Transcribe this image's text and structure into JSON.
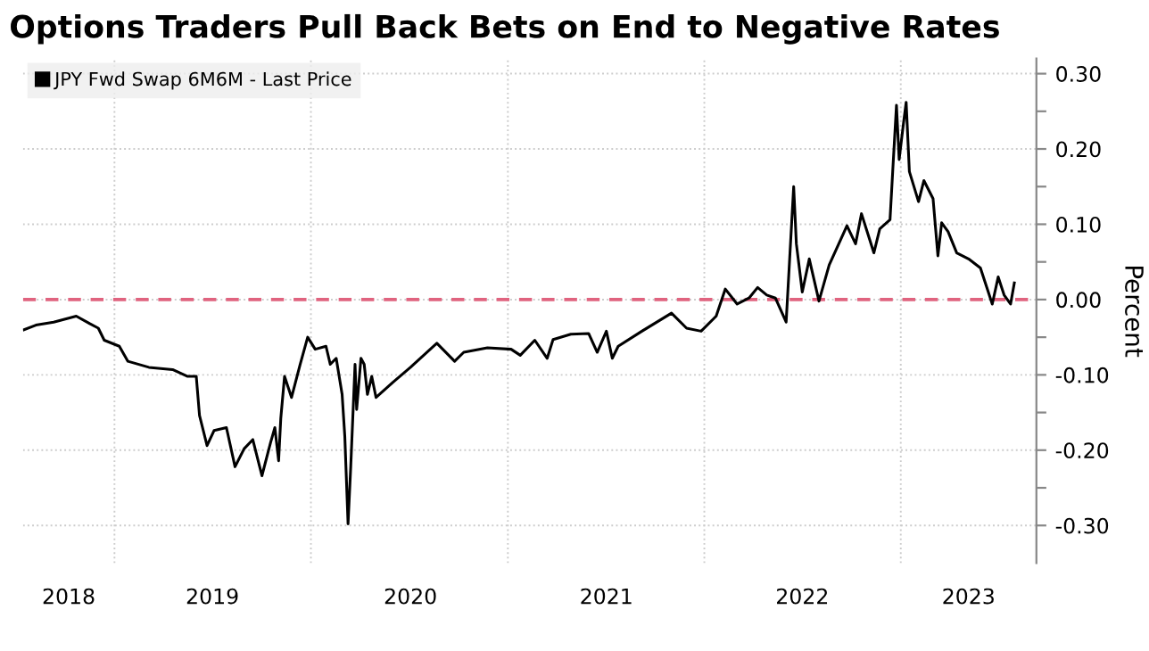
{
  "chart_data": {
    "type": "line",
    "title": "Options Traders Pull Back Bets on End to Negative Rates",
    "ylabel": "Percent",
    "series": [
      {
        "name": "JPY Fwd Swap 6M6M - Last Price",
        "color": "#000000",
        "x": [
          "2018-07-17",
          "2018-08-08",
          "2018-09-10",
          "2018-10-22",
          "2018-11-16",
          "2018-12-02",
          "2018-12-13",
          "2019-01-10",
          "2019-01-26",
          "2019-03-06",
          "2019-04-19",
          "2019-05-17",
          "2019-06-02",
          "2019-06-08",
          "2019-06-22",
          "2019-07-05",
          "2019-07-28",
          "2019-08-13",
          "2019-08-30",
          "2019-09-15",
          "2019-10-02",
          "2019-10-18",
          "2019-10-26",
          "2019-11-02",
          "2019-11-06",
          "2019-11-13",
          "2019-11-26",
          "2019-12-12",
          "2019-12-26",
          "2020-01-09",
          "2020-01-29",
          "2020-02-06",
          "2020-02-17",
          "2020-02-28",
          "2020-03-04",
          "2020-03-10",
          "2020-03-15",
          "2020-03-23",
          "2020-03-26",
          "2020-04-03",
          "2020-04-09",
          "2020-04-15",
          "2020-04-23",
          "2020-05-01",
          "2020-06-01",
          "2020-07-04",
          "2020-08-22",
          "2020-09-02",
          "2020-09-24",
          "2020-10-11",
          "2020-11-24",
          "2021-01-07",
          "2021-01-24",
          "2021-02-20",
          "2021-03-15",
          "2021-03-26",
          "2021-04-28",
          "2021-05-31",
          "2021-06-16",
          "2021-07-03",
          "2021-07-14",
          "2021-07-25",
          "2021-09-07",
          "2021-11-01",
          "2021-11-29",
          "2021-12-26",
          "2022-01-23",
          "2022-02-09",
          "2022-03-03",
          "2022-03-25",
          "2022-04-10",
          "2022-04-27",
          "2022-05-13",
          "2022-06-02",
          "2022-06-16",
          "2022-06-21",
          "2022-07-02",
          "2022-07-15",
          "2022-08-02",
          "2022-08-21",
          "2022-09-23",
          "2022-10-09",
          "2022-10-20",
          "2022-11-12",
          "2022-11-23",
          "2022-12-12",
          "2022-12-17",
          "2022-12-24",
          "2022-12-29",
          "2023-01-06",
          "2023-01-11",
          "2023-01-17",
          "2023-02-03",
          "2023-02-13",
          "2023-03-02",
          "2023-03-11",
          "2023-03-18",
          "2023-03-30",
          "2023-04-15",
          "2023-05-07",
          "2023-05-29",
          "2023-06-20",
          "2023-07-01",
          "2023-07-12",
          "2023-07-24",
          "2023-07-31"
        ],
        "values": [
          -0.04,
          -0.034,
          -0.03,
          -0.022,
          -0.032,
          -0.038,
          -0.054,
          -0.062,
          -0.082,
          -0.09,
          -0.093,
          -0.102,
          -0.102,
          -0.154,
          -0.194,
          -0.174,
          -0.17,
          -0.222,
          -0.198,
          -0.186,
          -0.234,
          -0.19,
          -0.17,
          -0.214,
          -0.158,
          -0.102,
          -0.13,
          -0.086,
          -0.05,
          -0.066,
          -0.062,
          -0.086,
          -0.078,
          -0.126,
          -0.182,
          -0.298,
          -0.222,
          -0.086,
          -0.146,
          -0.078,
          -0.086,
          -0.126,
          -0.102,
          -0.13,
          -0.11,
          -0.09,
          -0.058,
          -0.066,
          -0.082,
          -0.07,
          -0.064,
          -0.066,
          -0.074,
          -0.054,
          -0.078,
          -0.053,
          -0.046,
          -0.045,
          -0.07,
          -0.042,
          -0.078,
          -0.062,
          -0.042,
          -0.018,
          -0.038,
          -0.042,
          -0.022,
          0.014,
          -0.006,
          0.002,
          0.016,
          0.006,
          0.002,
          -0.03,
          0.15,
          0.074,
          0.01,
          0.054,
          -0.002,
          0.046,
          0.098,
          0.074,
          0.114,
          0.062,
          0.094,
          0.106,
          0.17,
          0.258,
          0.186,
          0.234,
          0.262,
          0.17,
          0.13,
          0.158,
          0.134,
          0.058,
          0.102,
          0.09,
          0.062,
          0.054,
          0.042,
          -0.006,
          0.03,
          0.006,
          -0.006,
          0.022
        ]
      }
    ],
    "xlim": [
      "2018-07-15",
      "2023-09-10"
    ],
    "xticks": [
      {
        "value": "2018-10-08",
        "label": "2018"
      },
      {
        "value": "2019-01-01",
        "label": null
      },
      {
        "value": "2019-07-02",
        "label": "2019"
      },
      {
        "value": "2020-01-01",
        "label": null
      },
      {
        "value": "2020-07-04",
        "label": "2020"
      },
      {
        "value": "2021-01-01",
        "label": null
      },
      {
        "value": "2021-07-03",
        "label": "2021"
      },
      {
        "value": "2022-01-01",
        "label": null
      },
      {
        "value": "2022-07-02",
        "label": "2022"
      },
      {
        "value": "2023-01-01",
        "label": null
      },
      {
        "value": "2023-05-07",
        "label": "2023"
      }
    ],
    "ylim": [
      -0.35,
      0.32
    ],
    "yticks": [
      {
        "value": -0.3,
        "label": "-0.30"
      },
      {
        "value": -0.25,
        "label": null
      },
      {
        "value": -0.2,
        "label": "-0.20"
      },
      {
        "value": -0.15,
        "label": null
      },
      {
        "value": -0.1,
        "label": "-0.10"
      },
      {
        "value": -0.05,
        "label": null
      },
      {
        "value": 0,
        "label": "0.00"
      },
      {
        "value": 0.05,
        "label": null
      },
      {
        "value": 0.1,
        "label": "0.10"
      },
      {
        "value": 0.15,
        "label": null
      },
      {
        "value": 0.2,
        "label": "0.20"
      },
      {
        "value": 0.25,
        "label": null
      },
      {
        "value": 0.3,
        "label": "0.30"
      }
    ],
    "ref_lines": [
      {
        "axis": "y",
        "value": 0,
        "label": null,
        "color": "#e0637f",
        "line_style": "dashed"
      }
    ],
    "grid": true,
    "legend": "top left",
    "line_style": "solid",
    "marker": "none"
  }
}
